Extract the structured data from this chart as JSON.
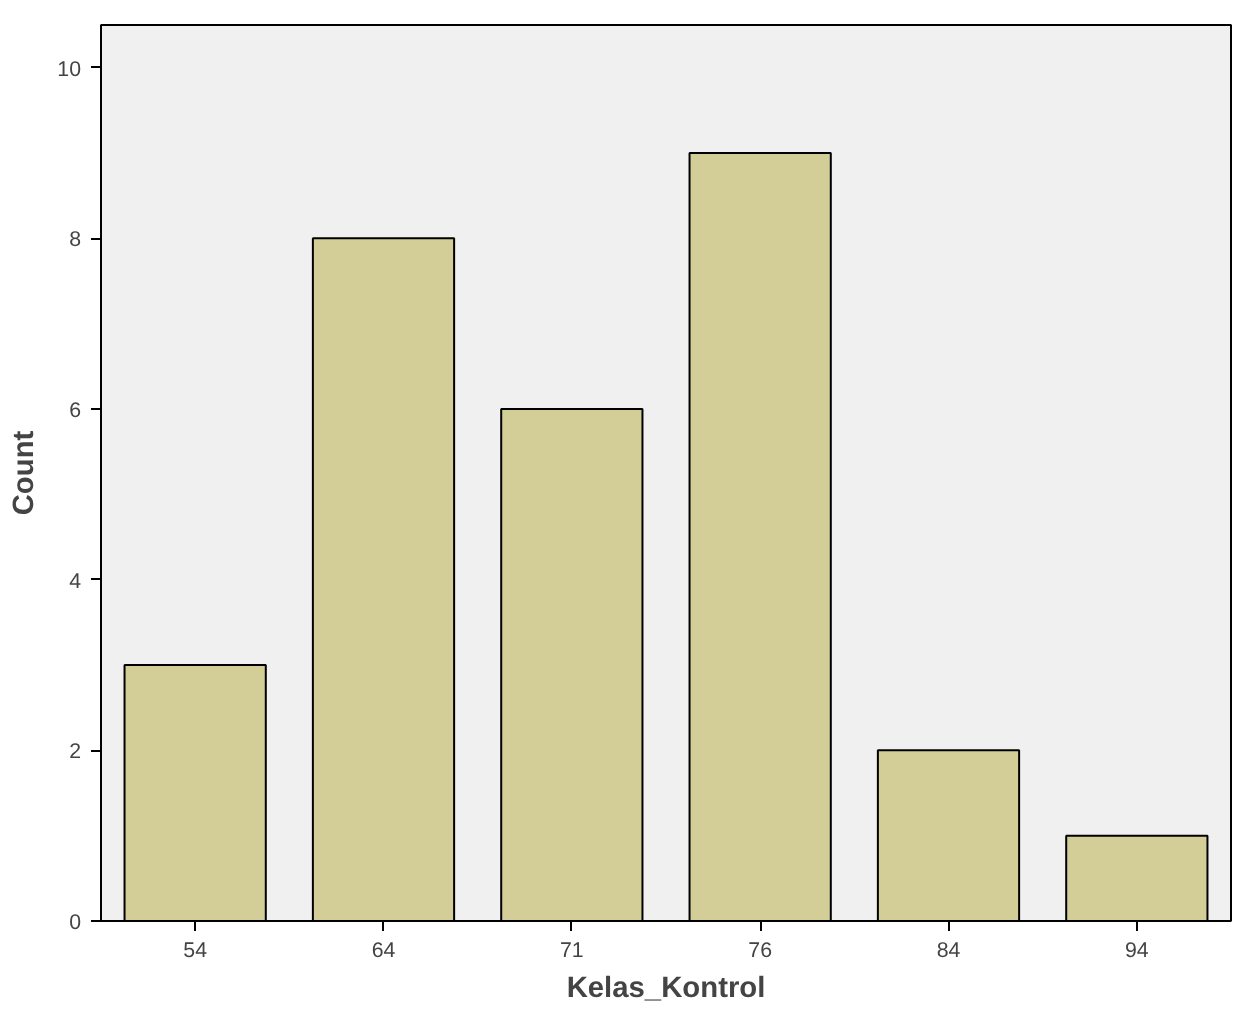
{
  "chart_data": {
    "type": "bar",
    "xlabel": "Kelas_Kontrol",
    "ylabel": "Count",
    "categories": [
      "54",
      "64",
      "71",
      "76",
      "84",
      "94"
    ],
    "values": [
      3,
      8,
      6,
      9,
      2,
      1
    ],
    "color": "#d3ce97",
    "ylim": [
      0,
      10.5
    ],
    "yticks": [
      0,
      2,
      4,
      6,
      8,
      10
    ],
    "grid": false
  }
}
